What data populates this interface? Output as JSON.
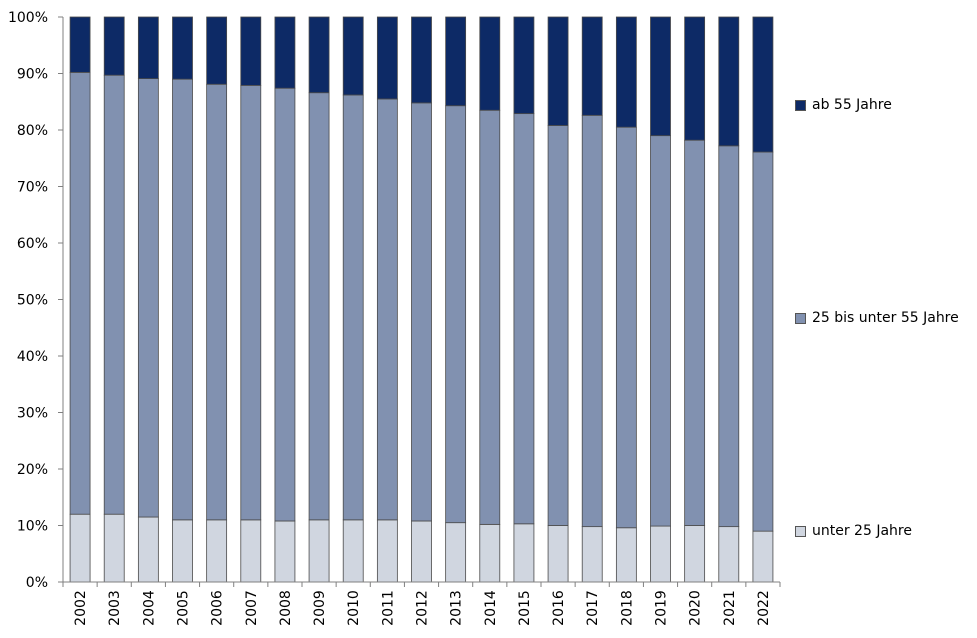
{
  "chart_data": {
    "type": "bar",
    "stacked": true,
    "percent": true,
    "categories": [
      "2002",
      "2003",
      "2004",
      "2005",
      "2006",
      "2007",
      "2008",
      "2009",
      "2010",
      "2011",
      "2012",
      "2013",
      "2014",
      "2015",
      "2016",
      "2017",
      "2018",
      "2019",
      "2020",
      "2021",
      "2022"
    ],
    "series": [
      {
        "name": "unter 25 Jahre",
        "color": "#d0d6e0",
        "values": [
          12.0,
          12.0,
          11.5,
          11.0,
          11.0,
          11.0,
          10.8,
          11.0,
          11.0,
          11.0,
          10.8,
          10.5,
          10.2,
          10.3,
          10.0,
          9.8,
          9.6,
          9.9,
          10.0,
          9.8,
          9.0
        ]
      },
      {
        "name": "25 bis unter 55 Jahre",
        "color": "#8191b0",
        "values": [
          78.2,
          77.7,
          77.6,
          78.0,
          77.1,
          76.9,
          76.6,
          75.6,
          75.2,
          74.5,
          74.0,
          73.8,
          73.3,
          72.6,
          70.8,
          72.8,
          70.9,
          69.1,
          68.2,
          67.4,
          67.1
        ]
      },
      {
        "name": "ab 55 Jahre",
        "color": "#0d2a66",
        "values": [
          9.8,
          10.3,
          10.9,
          11.0,
          11.9,
          12.1,
          12.6,
          13.4,
          13.8,
          14.5,
          15.2,
          15.7,
          16.5,
          17.1,
          19.2,
          17.4,
          19.5,
          21.0,
          21.8,
          22.8,
          23.9
        ]
      }
    ],
    "y_ticks": [
      "0%",
      "10%",
      "20%",
      "30%",
      "40%",
      "50%",
      "60%",
      "70%",
      "80%",
      "90%",
      "100%"
    ],
    "ylim": [
      0,
      100
    ],
    "legend_position": "right",
    "grid": false,
    "title": "",
    "xlabel": "",
    "ylabel": ""
  }
}
